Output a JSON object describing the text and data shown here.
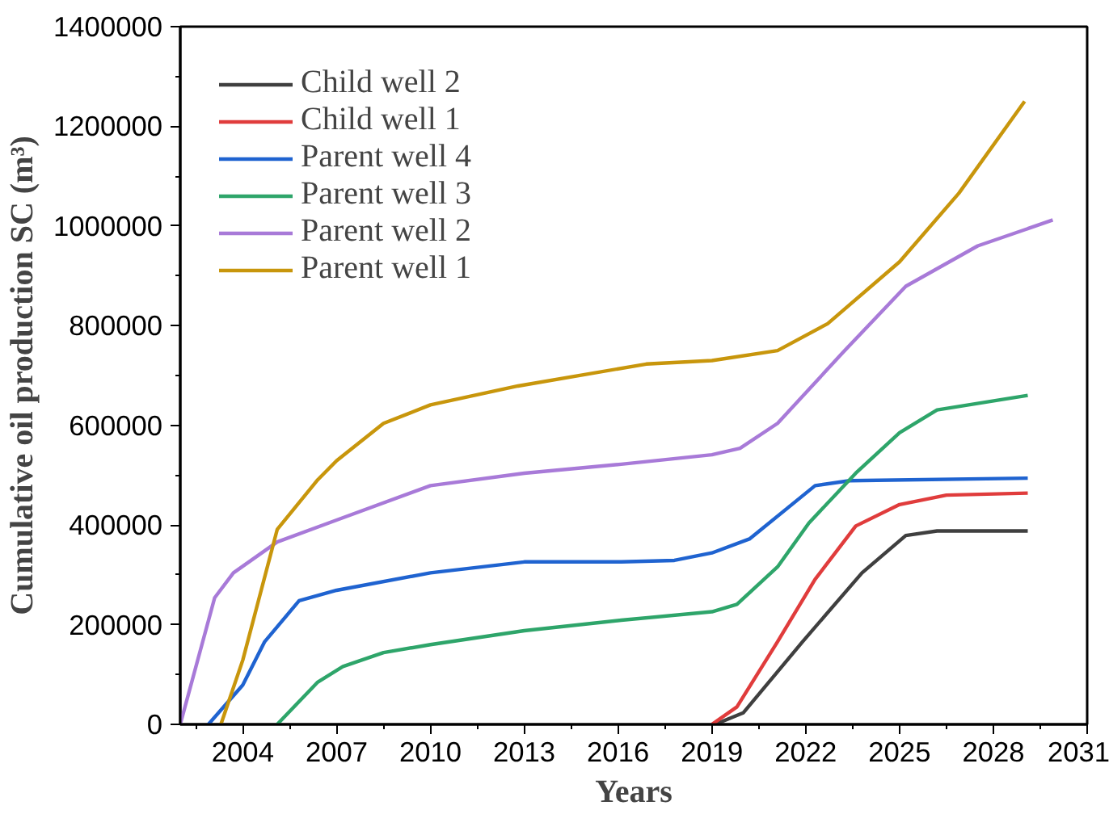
{
  "chart_data": {
    "type": "line",
    "xlabel": "Years",
    "ylabel": "Cumulative oil production SC (m³)",
    "xlim": [
      2002,
      2031
    ],
    "xticks": [
      2004,
      2007,
      2010,
      2013,
      2016,
      2019,
      2022,
      2025,
      2028,
      2031
    ],
    "ylim": [
      0,
      1400000
    ],
    "yticks": [
      0,
      200000,
      400000,
      600000,
      800000,
      1000000,
      1200000,
      1400000
    ],
    "grid": false,
    "legend": "top left",
    "marker": "none",
    "line_style": "solid",
    "series": [
      {
        "name": "Child well 2",
        "color": "#3f3f3f",
        "x": [
          2019.1,
          2020.0,
          2021.9,
          2023.8,
          2025.2,
          2026.2,
          2029.1
        ],
        "values": [
          0,
          23000,
          166000,
          304000,
          379000,
          388000,
          388000
        ]
      },
      {
        "name": "Child well 1",
        "color": "#e03c3c",
        "x": [
          2019.0,
          2019.8,
          2021.1,
          2022.3,
          2023.6,
          2025.0,
          2026.5,
          2029.1
        ],
        "values": [
          0,
          35000,
          166000,
          291000,
          398000,
          441000,
          460000,
          464000
        ]
      },
      {
        "name": "Parent well 4",
        "color": "#1f63d0",
        "x": [
          2002.9,
          2004.0,
          2004.7,
          2005.8,
          2007.0,
          2010.0,
          2013.0,
          2016.1,
          2017.8,
          2019.0,
          2020.2,
          2022.3,
          2023.4,
          2029.1
        ],
        "values": [
          0,
          79000,
          166000,
          248000,
          269000,
          304000,
          326000,
          326000,
          329000,
          344000,
          372000,
          479000,
          489000,
          494000
        ]
      },
      {
        "name": "Parent well 3",
        "color": "#2ea56a",
        "x": [
          2005.1,
          2006.4,
          2007.2,
          2008.5,
          2010.0,
          2013.0,
          2016.1,
          2019.0,
          2019.8,
          2021.1,
          2022.1,
          2023.6,
          2025.0,
          2026.2,
          2029.1
        ],
        "values": [
          0,
          85000,
          116000,
          144000,
          160000,
          188000,
          209000,
          226000,
          241000,
          316000,
          404000,
          504000,
          585000,
          631000,
          660000
        ]
      },
      {
        "name": "Parent well 2",
        "color": "#a87ad8",
        "x": [
          2002.0,
          2003.1,
          2003.7,
          2005.1,
          2007.0,
          2010.0,
          2013.0,
          2016.1,
          2019.0,
          2019.9,
          2021.1,
          2023.2,
          2025.2,
          2027.5,
          2029.9
        ],
        "values": [
          0,
          254000,
          304000,
          366000,
          410000,
          479000,
          504000,
          522000,
          541000,
          554000,
          604000,
          747000,
          879000,
          960000,
          1012000
        ]
      },
      {
        "name": "Parent well 1",
        "color": "#c8960c",
        "x": [
          2003.3,
          2004.0,
          2005.1,
          2006.4,
          2007.0,
          2008.5,
          2010.0,
          2012.8,
          2016.9,
          2019.0,
          2021.1,
          2022.7,
          2025.0,
          2026.9,
          2029.0
        ],
        "values": [
          0,
          129000,
          391000,
          491000,
          529000,
          604000,
          641000,
          679000,
          723000,
          730000,
          750000,
          804000,
          928000,
          1066000,
          1250000
        ]
      }
    ]
  }
}
